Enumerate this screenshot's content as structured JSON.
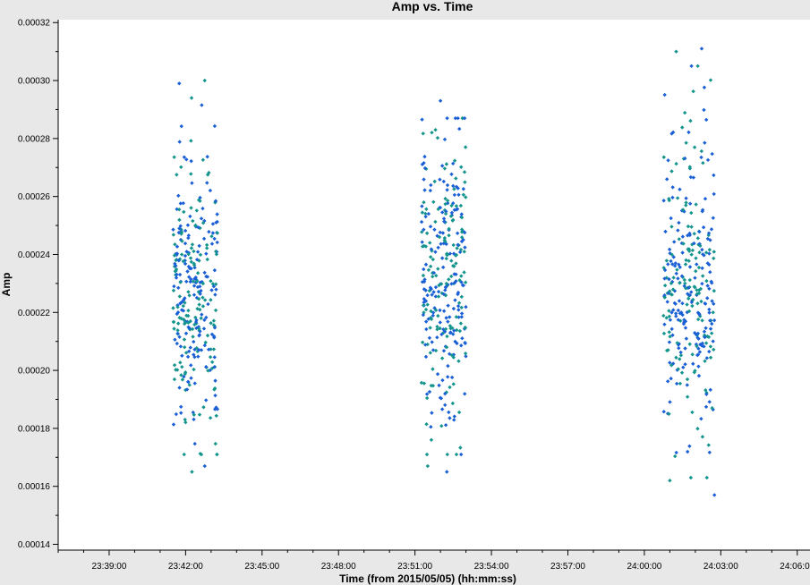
{
  "chart_data": {
    "type": "scatter",
    "title": "Amp vs. Time",
    "xlabel": "Time (from 2015/05/05) (hh:mm:ss)",
    "ylabel": "Amp",
    "x_ticks": [
      "23:39:00",
      "23:42:00",
      "23:45:00",
      "23:48:00",
      "23:51:00",
      "23:54:00",
      "23:57:00",
      "24:00:00",
      "24:03:00",
      "24:06:00"
    ],
    "x_range": [
      "23:37:00",
      "24:06:30"
    ],
    "y_ticks": [
      "0.00014",
      "0.00016",
      "0.00018",
      "0.00020",
      "0.00022",
      "0.00024",
      "0.00026",
      "0.00028",
      "0.00030",
      "0.00032"
    ],
    "ylim": [
      0.000138,
      0.000321
    ],
    "grid": false,
    "colors": {
      "series_a": "#1a5fd6",
      "series_b": "#13948c",
      "background": "#ffffff",
      "frame": "#e8e8e8"
    },
    "scans": [
      {
        "start": "23:41:30",
        "end": "23:43:15",
        "ymin": 0.000165,
        "ymax": 0.0003,
        "ymean": 0.000228,
        "ystd": 2.4e-05,
        "n_points": 330
      },
      {
        "start": "23:51:15",
        "end": "23:53:00",
        "ymin": 0.000165,
        "ymax": 0.000293,
        "ymean": 0.000232,
        "ystd": 2.6e-05,
        "n_points": 330
      },
      {
        "start": "24:00:45",
        "end": "24:02:45",
        "ymin": 0.000157,
        "ymax": 0.000311,
        "ymean": 0.000228,
        "ystd": 2.6e-05,
        "n_points": 330
      }
    ],
    "extreme_points": [
      {
        "x": "23:41:45",
        "y": 0.000299
      },
      {
        "x": "23:42:45",
        "y": 0.0003
      },
      {
        "x": "23:42:45",
        "y": 0.000167
      },
      {
        "x": "23:42:15",
        "y": 0.000165
      },
      {
        "x": "23:52:00",
        "y": 0.000293
      },
      {
        "x": "23:51:30",
        "y": 0.000167
      },
      {
        "x": "23:52:15",
        "y": 0.000165
      },
      {
        "x": "24:01:15",
        "y": 0.00031
      },
      {
        "x": "24:02:15",
        "y": 0.000311
      },
      {
        "x": "24:01:00",
        "y": 0.000162
      },
      {
        "x": "24:02:45",
        "y": 0.000157
      }
    ]
  }
}
